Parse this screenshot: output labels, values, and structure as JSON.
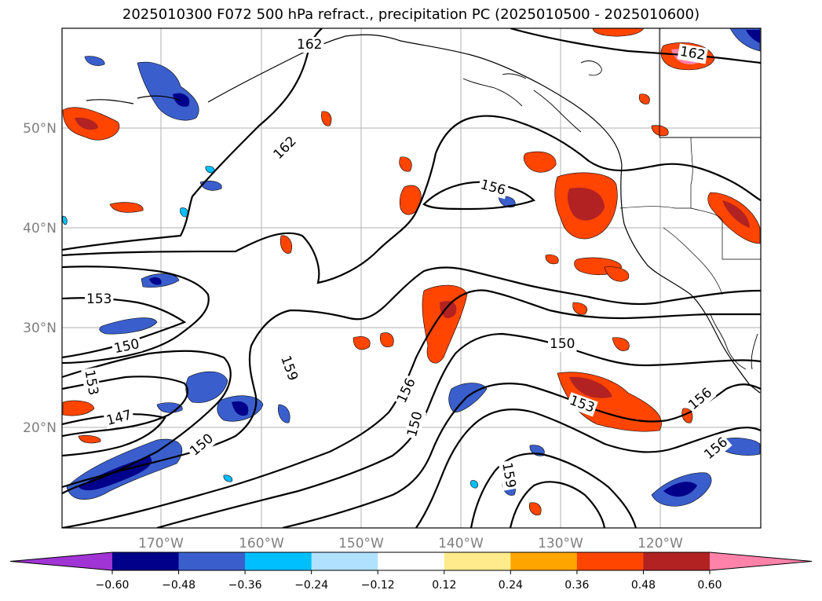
{
  "title": "2025010300 F072 500 hPa refract., precipitation PC (2025010500 - 2025010600)",
  "lat_labels": [
    "50°N",
    "40°N",
    "30°N",
    "20°N"
  ],
  "lon_labels": [
    "170°W",
    "160°W",
    "150°W",
    "140°W",
    "130°W",
    "120°W"
  ],
  "contour_labels": [
    "162",
    "162",
    "162",
    "156",
    "153",
    "150",
    "153",
    "147",
    "150",
    "159",
    "156",
    "150",
    "150",
    "153",
    "156",
    "156",
    "159"
  ],
  "colorbar": {
    "ticks": [
      "−0.60",
      "−0.48",
      "−0.36",
      "−0.24",
      "−0.12",
      "0.12",
      "0.24",
      "0.36",
      "0.48",
      "0.60"
    ],
    "colors": [
      "#a034d4",
      "#00008b",
      "#3a5fcd",
      "#00bfff",
      "#b0e2ff",
      "#ffffff",
      "#ffeb8b",
      "#ffa500",
      "#ff4500",
      "#b22222",
      "#ff82ab"
    ]
  }
}
